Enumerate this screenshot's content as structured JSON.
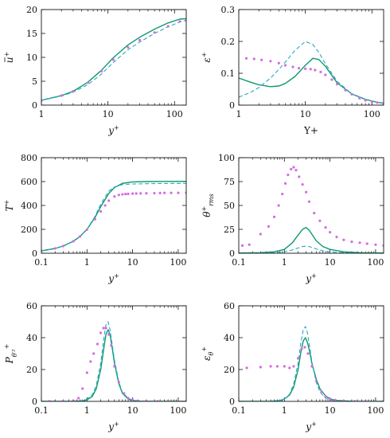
{
  "colors": {
    "solid": "#0d9a6b",
    "dashed": "#2aa6c8",
    "dots": "#d46de0"
  },
  "chart_data": [
    {
      "id": "u",
      "type": "line",
      "xscale": "log",
      "xlim": [
        1,
        150
      ],
      "ylim": [
        0,
        20
      ],
      "xticks": [
        1,
        10,
        100
      ],
      "xtick_labels": [
        "1",
        "10",
        "100"
      ],
      "yticks": [
        0,
        5,
        10,
        15,
        20
      ],
      "ytick_labels": [
        "0",
        "5",
        "10",
        "15",
        "20"
      ],
      "xlabel": "y+",
      "ylabel": "u+ (overbar)",
      "series": [
        {
          "style": "solid",
          "x": [
            1,
            2,
            3,
            5,
            8,
            12,
            20,
            30,
            50,
            80,
            120,
            150
          ],
          "y": [
            1,
            2,
            2.9,
            4.8,
            7.3,
            9.9,
            12.6,
            14.2,
            15.9,
            17.2,
            18.0,
            18.1
          ]
        },
        {
          "style": "dashed",
          "x": [
            1,
            2,
            3,
            5,
            8,
            12,
            20,
            30,
            50,
            80,
            120,
            150
          ],
          "y": [
            1,
            1.9,
            2.7,
            4.3,
            6.5,
            8.9,
            11.6,
            13.2,
            15.0,
            16.4,
            17.4,
            17.7
          ]
        },
        {
          "style": "dots",
          "x": [
            1,
            2,
            3,
            5,
            8,
            12,
            20,
            30,
            50,
            80,
            120,
            150
          ],
          "y": [
            1,
            2,
            2.9,
            4.7,
            7.1,
            9.5,
            12.1,
            13.6,
            15.2,
            16.5,
            17.5,
            17.8
          ]
        }
      ]
    },
    {
      "id": "eps",
      "type": "line",
      "xscale": "log",
      "xlim": [
        1,
        150
      ],
      "ylim": [
        0,
        0.3
      ],
      "xticks": [
        1,
        10,
        100
      ],
      "xtick_labels": [
        "1",
        "10",
        "100"
      ],
      "yticks": [
        0,
        0.1,
        0.2,
        0.3
      ],
      "ytick_labels": [
        "0",
        "0.1",
        "0.2",
        "0.3"
      ],
      "xlabel": "Y+",
      "ylabel": "ε+",
      "series": [
        {
          "style": "solid",
          "x": [
            1,
            1.5,
            2,
            3,
            4,
            5,
            7,
            10,
            13,
            16,
            20,
            30,
            50,
            80,
            120,
            150
          ],
          "y": [
            0.085,
            0.072,
            0.064,
            0.058,
            0.06,
            0.068,
            0.09,
            0.125,
            0.147,
            0.143,
            0.122,
            0.07,
            0.035,
            0.018,
            0.009,
            0.006
          ]
        },
        {
          "style": "dashed",
          "x": [
            1,
            1.5,
            2,
            3,
            4,
            5,
            7,
            10,
            13,
            16,
            20,
            30,
            50,
            80,
            120,
            150
          ],
          "y": [
            0.025,
            0.04,
            0.055,
            0.085,
            0.112,
            0.135,
            0.172,
            0.2,
            0.19,
            0.165,
            0.13,
            0.075,
            0.035,
            0.018,
            0.009,
            0.006
          ]
        },
        {
          "style": "dots",
          "x": [
            1.3,
            1.7,
            2.2,
            3,
            4,
            5,
            6.5,
            8,
            10,
            12,
            14,
            17,
            20,
            25,
            30,
            40,
            50,
            65,
            80,
            100,
            120,
            150
          ],
          "y": [
            0.147,
            0.145,
            0.142,
            0.138,
            0.132,
            0.125,
            0.12,
            0.116,
            0.114,
            0.113,
            0.11,
            0.104,
            0.095,
            0.08,
            0.066,
            0.047,
            0.034,
            0.022,
            0.015,
            0.01,
            0.008,
            0.005
          ]
        }
      ]
    },
    {
      "id": "T",
      "type": "line",
      "xscale": "log",
      "xlim": [
        0.1,
        150
      ],
      "ylim": [
        0,
        800
      ],
      "xticks": [
        0.1,
        1,
        10,
        100
      ],
      "xtick_labels": [
        "0.1",
        "1",
        "10",
        "100"
      ],
      "yticks": [
        0,
        200,
        400,
        600,
        800
      ],
      "ytick_labels": [
        "0",
        "200",
        "400",
        "600",
        "800"
      ],
      "xlabel": "y+",
      "ylabel": "T+",
      "series": [
        {
          "style": "solid",
          "x": [
            0.1,
            0.2,
            0.3,
            0.5,
            0.7,
            1,
            1.5,
            2,
            3,
            4,
            6,
            10,
            20,
            50,
            150
          ],
          "y": [
            20,
            40,
            60,
            100,
            140,
            200,
            300,
            390,
            500,
            550,
            585,
            597,
            600,
            601,
            602
          ]
        },
        {
          "style": "dashed",
          "x": [
            0.1,
            0.2,
            0.3,
            0.5,
            0.7,
            1,
            1.5,
            2,
            3,
            4,
            6,
            10,
            20,
            50,
            150
          ],
          "y": [
            20,
            40,
            60,
            100,
            140,
            200,
            310,
            410,
            520,
            555,
            575,
            580,
            582,
            584,
            585
          ]
        },
        {
          "style": "dots",
          "x": [
            0.1,
            0.2,
            0.3,
            0.5,
            0.7,
            1,
            1.5,
            2,
            2.5,
            3,
            4,
            5,
            6,
            7,
            8,
            10,
            12,
            15,
            20,
            30,
            40,
            50,
            70,
            100,
            150
          ],
          "y": [
            20,
            40,
            60,
            100,
            140,
            198,
            285,
            350,
            400,
            440,
            475,
            488,
            493,
            496,
            497,
            499,
            500,
            501,
            502,
            503,
            504,
            505,
            505,
            506,
            507
          ]
        }
      ]
    },
    {
      "id": "theta",
      "type": "line",
      "xscale": "log",
      "xlim": [
        0.1,
        150
      ],
      "ylim": [
        0,
        100
      ],
      "xticks": [
        0.1,
        1,
        10,
        100
      ],
      "xtick_labels": [
        "0.1",
        "1",
        "10",
        "100"
      ],
      "yticks": [
        0,
        25,
        50,
        75,
        100
      ],
      "ytick_labels": [
        "0",
        "25",
        "50",
        "75",
        "100"
      ],
      "xlabel": "y+",
      "ylabel": "θ+rms",
      "series": [
        {
          "style": "solid",
          "x": [
            0.1,
            0.3,
            0.6,
            1,
            1.5,
            2,
            2.5,
            3,
            3.5,
            4,
            5,
            7,
            10,
            20,
            50,
            150
          ],
          "y": [
            0.3,
            0.6,
            1.5,
            4,
            11,
            19,
            25,
            27,
            24,
            20,
            13,
            7,
            4,
            1.5,
            0.5,
            0.2
          ]
        },
        {
          "style": "dashed",
          "x": [
            0.1,
            0.3,
            0.6,
            1,
            1.5,
            2,
            2.5,
            3,
            3.5,
            4,
            5,
            7,
            10,
            20,
            50,
            150
          ],
          "y": [
            0.2,
            0.4,
            0.8,
            1.5,
            3.5,
            5.5,
            7,
            7.5,
            7,
            6,
            4.5,
            2.5,
            1.5,
            0.5,
            0.2,
            0.1
          ]
        },
        {
          "style": "dots",
          "x": [
            0.12,
            0.17,
            0.3,
            0.45,
            0.6,
            0.75,
            0.9,
            1.05,
            1.2,
            1.4,
            1.6,
            1.8,
            2.1,
            2.5,
            3,
            3.5,
            4.5,
            6,
            8,
            10,
            14,
            20,
            30,
            45,
            65,
            100,
            150
          ],
          "y": [
            8,
            9,
            20,
            28,
            38,
            50,
            62,
            73,
            82,
            88,
            90,
            87,
            80,
            72,
            64,
            54,
            42,
            34,
            27,
            22,
            17,
            14,
            12,
            11,
            10,
            9,
            8
          ]
        }
      ]
    },
    {
      "id": "P",
      "type": "line",
      "xscale": "log",
      "xlim": [
        0.1,
        150
      ],
      "ylim": [
        0,
        60
      ],
      "xticks": [
        0.1,
        1,
        10,
        100
      ],
      "xtick_labels": [
        "0.1",
        "1",
        "10",
        "100"
      ],
      "yticks": [
        0,
        20,
        40,
        60
      ],
      "ytick_labels": [
        "0",
        "20",
        "40",
        "60"
      ],
      "xlabel": "y+",
      "ylabel": "P+ θ'²",
      "series": [
        {
          "style": "solid",
          "x": [
            0.1,
            0.5,
            0.8,
            1,
            1.3,
            1.6,
            2,
            2.3,
            2.6,
            2.9,
            3.2,
            3.6,
            4,
            5,
            6,
            8,
            10,
            15,
            30,
            150
          ],
          "y": [
            0,
            0,
            0.3,
            1,
            3,
            8,
            20,
            32,
            42,
            45,
            42,
            33,
            24,
            11,
            5,
            1.5,
            0.5,
            0.1,
            0,
            0
          ]
        },
        {
          "style": "dashed",
          "x": [
            0.1,
            0.5,
            0.8,
            1,
            1.3,
            1.6,
            2,
            2.3,
            2.6,
            2.9,
            3.2,
            3.6,
            4,
            5,
            6,
            8,
            10,
            15,
            30,
            150
          ],
          "y": [
            0,
            0,
            0.5,
            1.5,
            4,
            10,
            24,
            38,
            48,
            50,
            45,
            35,
            26,
            12,
            5.5,
            2,
            0.8,
            0.2,
            0,
            0
          ]
        },
        {
          "style": "dots",
          "x": [
            0.15,
            0.3,
            0.5,
            0.65,
            0.8,
            1.0,
            1.2,
            1.4,
            1.7,
            2.0,
            2.3,
            2.6,
            3.0,
            3.4,
            4.0,
            5,
            6.5,
            8,
            10,
            13,
            20,
            35,
            60,
            100,
            150
          ],
          "y": [
            0,
            0.1,
            0.5,
            2,
            8,
            18,
            25,
            30,
            36,
            43,
            46,
            46,
            42,
            35,
            22,
            12,
            5,
            2,
            1,
            0.4,
            0.1,
            0,
            0,
            0,
            0
          ]
        }
      ]
    },
    {
      "id": "epst",
      "type": "line",
      "xscale": "log",
      "xlim": [
        0.1,
        150
      ],
      "ylim": [
        0,
        60
      ],
      "xticks": [
        0.1,
        1,
        10,
        100
      ],
      "xtick_labels": [
        "0.1",
        "1",
        "10",
        "100"
      ],
      "yticks": [
        0,
        20,
        40,
        60
      ],
      "ytick_labels": [
        "0",
        "20",
        "40",
        "60"
      ],
      "xlabel": "y+",
      "ylabel": "εθ+",
      "series": [
        {
          "style": "solid",
          "x": [
            0.1,
            0.5,
            0.8,
            1,
            1.3,
            1.6,
            2,
            2.3,
            2.6,
            2.9,
            3.2,
            3.6,
            4,
            5,
            6,
            8,
            10,
            15,
            30,
            150
          ],
          "y": [
            0,
            0,
            0.5,
            1.5,
            4,
            9,
            20,
            31,
            38,
            40,
            37,
            31,
            24,
            14,
            8,
            3.5,
            1.5,
            0.5,
            0.1,
            0
          ]
        },
        {
          "style": "dashed",
          "x": [
            0.1,
            0.5,
            0.8,
            1,
            1.3,
            1.6,
            2,
            2.3,
            2.6,
            2.9,
            3.2,
            3.6,
            4,
            5,
            6,
            8,
            10,
            15,
            30,
            150
          ],
          "y": [
            0,
            0,
            0.5,
            1.5,
            4.5,
            11,
            24,
            37,
            45,
            47,
            43,
            34,
            25,
            12,
            6,
            2,
            0.8,
            0.2,
            0,
            0
          ]
        },
        {
          "style": "dots",
          "x": [
            0.15,
            0.3,
            0.5,
            0.7,
            1.0,
            1.3,
            1.6,
            2.0,
            2.4,
            2.8,
            3.3,
            4.0,
            5,
            6.5,
            8,
            10,
            13,
            20,
            35,
            60,
            100,
            150
          ],
          "y": [
            21,
            21.5,
            22,
            22,
            22,
            21,
            22,
            27,
            33,
            34,
            30,
            22,
            13,
            6,
            3,
            1.5,
            0.8,
            0.3,
            0.1,
            0,
            0,
            0
          ]
        }
      ]
    }
  ]
}
